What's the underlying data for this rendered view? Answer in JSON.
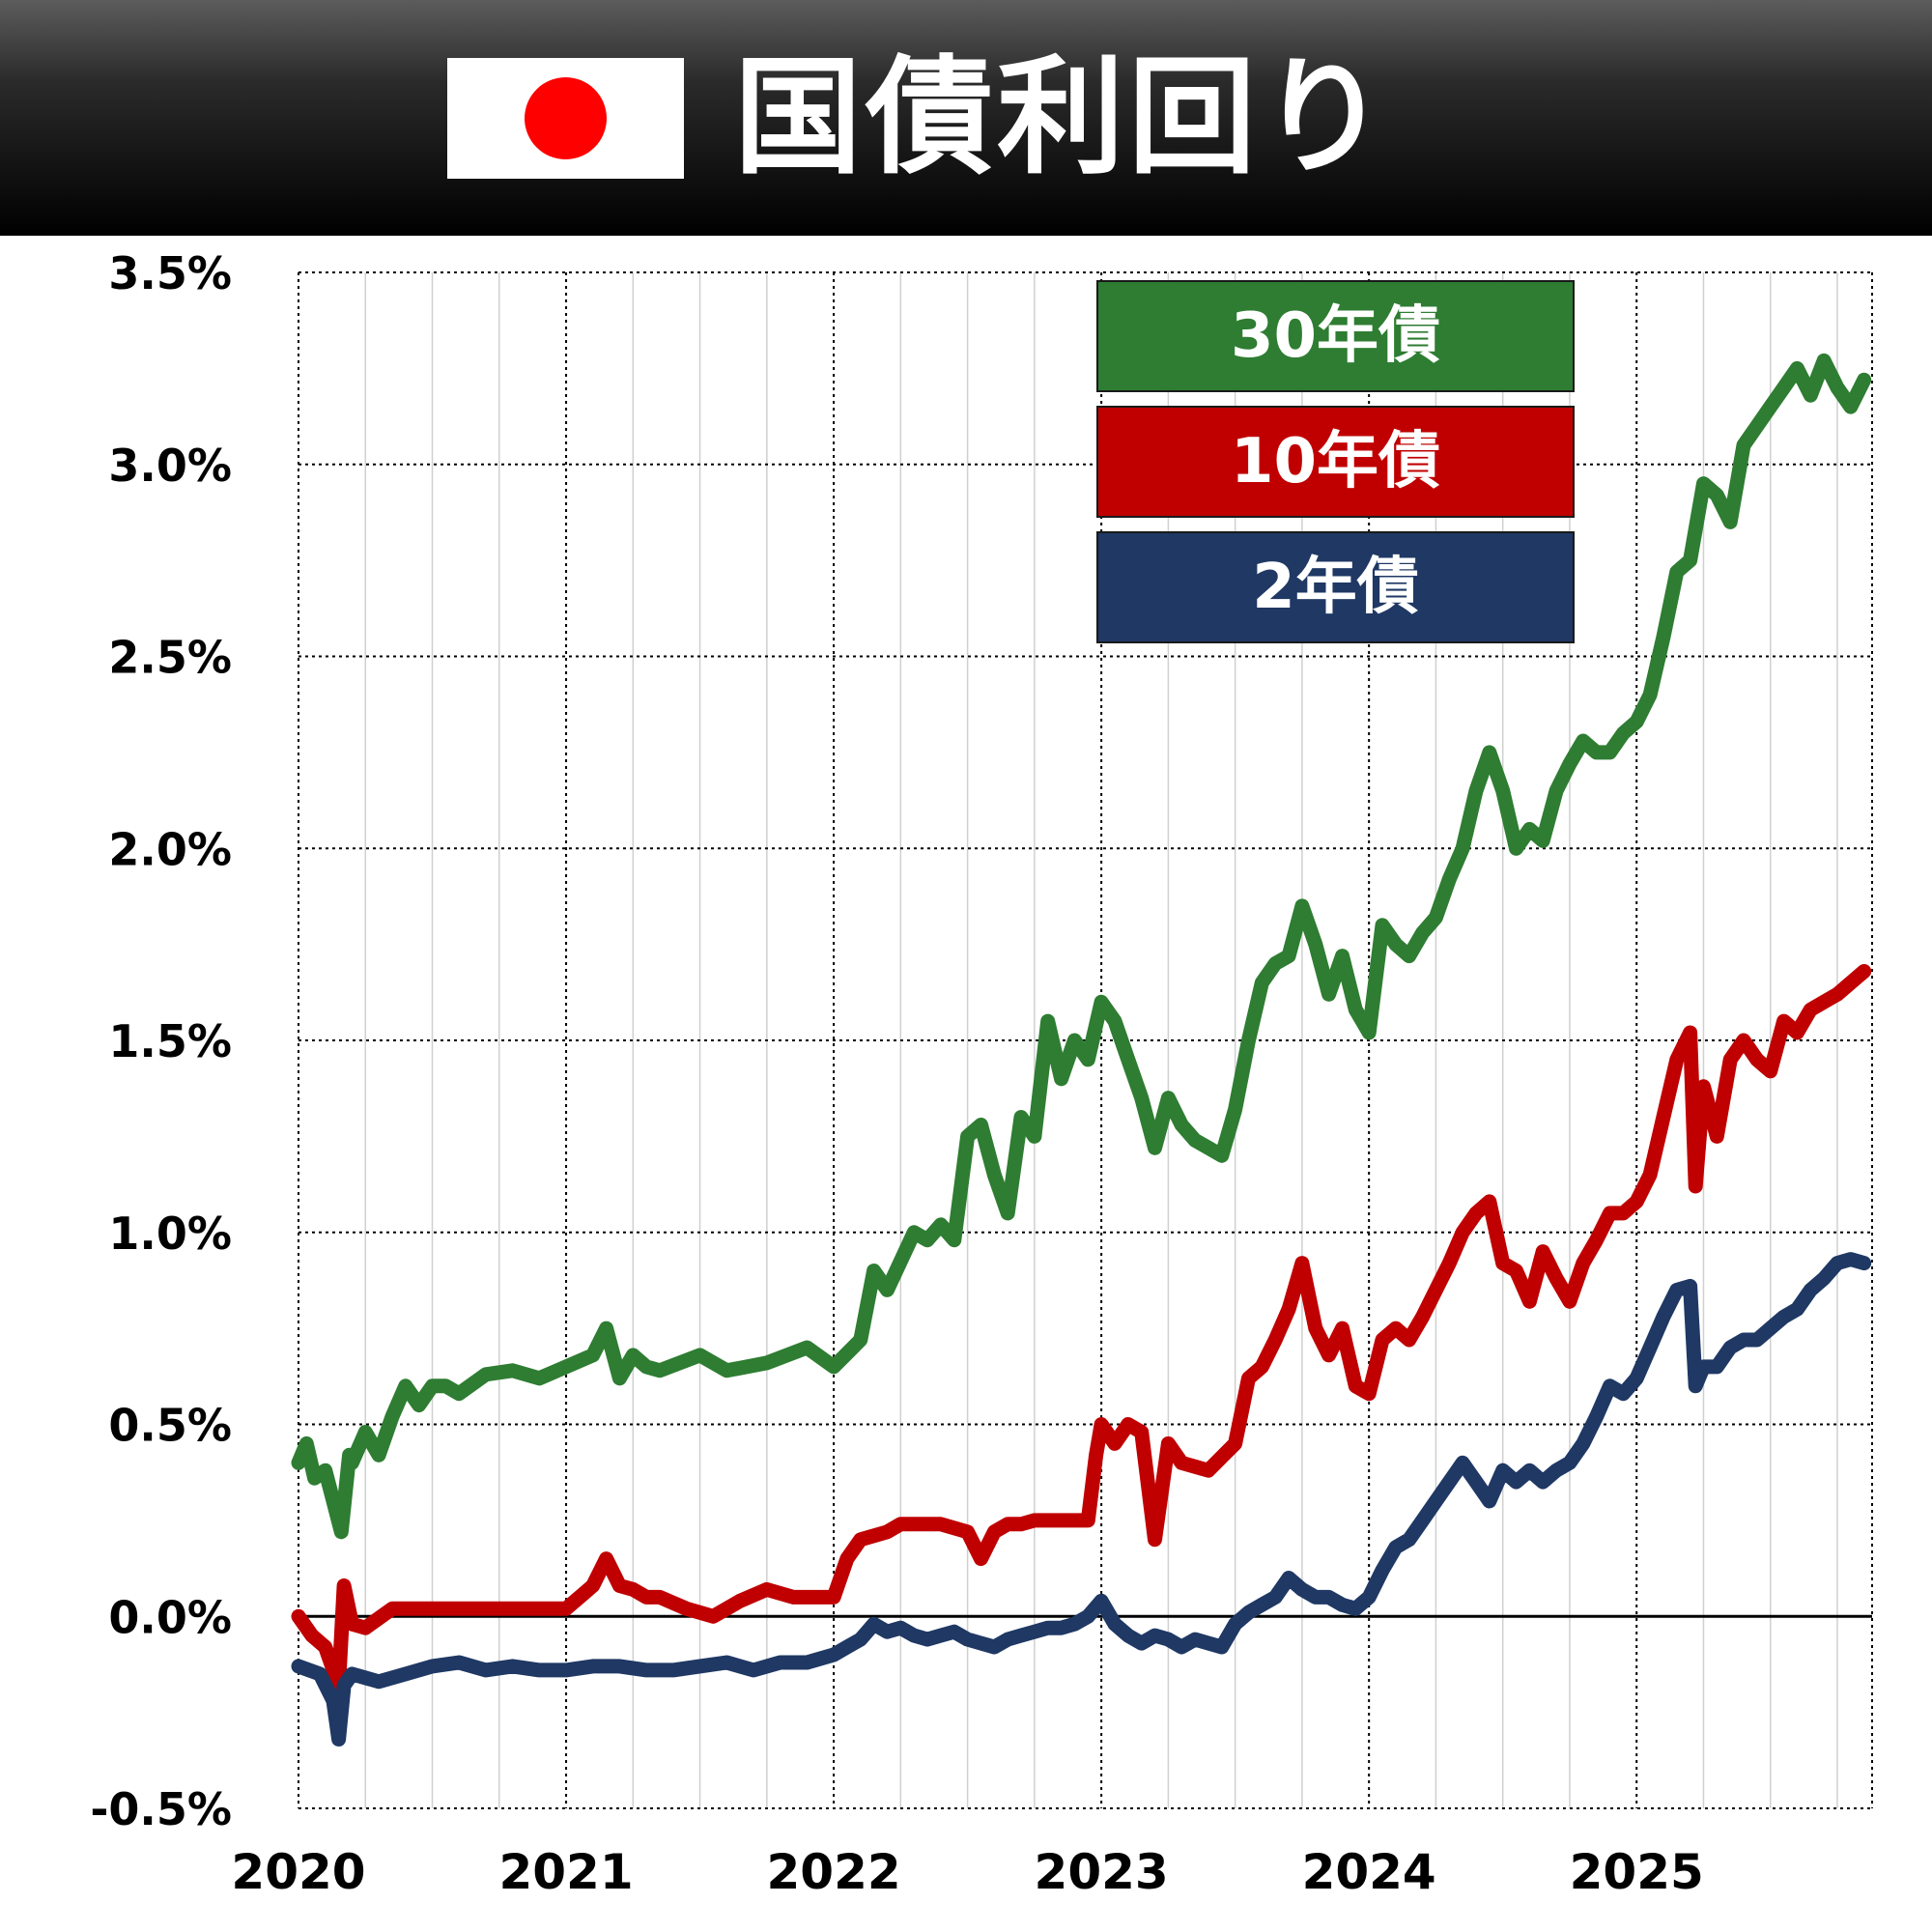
{
  "header": {
    "title": "国債利回り"
  },
  "colors": {
    "header_bg": "#000000",
    "flag_red": "#ff0000",
    "grid": "#d0d0d0",
    "major_grid": "#000000"
  },
  "chart_data": {
    "type": "line",
    "title": "国債利回り",
    "xlabel": "",
    "ylabel": "",
    "ylim": [
      -0.5,
      3.5
    ],
    "xlim": [
      2020.0,
      2025.88
    ],
    "y_ticks": [
      -0.5,
      0.0,
      0.5,
      1.0,
      1.5,
      2.0,
      2.5,
      3.0,
      3.5
    ],
    "y_tick_labels": [
      "-0.5%",
      "0.0%",
      "0.5%",
      "1.0%",
      "1.5%",
      "2.0%",
      "2.5%",
      "3.0%",
      "3.5%"
    ],
    "x_ticks": [
      2020,
      2021,
      2022,
      2023,
      2024,
      2025
    ],
    "x_tick_labels": [
      "2020",
      "2021",
      "2022",
      "2023",
      "2024",
      "2025"
    ],
    "grid": true,
    "legend_position": "top-right",
    "series": [
      {
        "name": "30年債",
        "color": "#2e7d32",
        "x": [
          2020.0,
          2020.03,
          2020.06,
          2020.1,
          2020.13,
          2020.16,
          2020.19,
          2020.2,
          2020.25,
          2020.3,
          2020.35,
          2020.4,
          2020.45,
          2020.5,
          2020.55,
          2020.6,
          2020.7,
          2020.8,
          2020.9,
          2021.0,
          2021.1,
          2021.15,
          2021.2,
          2021.25,
          2021.3,
          2021.35,
          2021.5,
          2021.6,
          2021.75,
          2021.9,
          2022.0,
          2022.1,
          2022.15,
          2022.2,
          2022.3,
          2022.35,
          2022.4,
          2022.45,
          2022.5,
          2022.55,
          2022.6,
          2022.65,
          2022.7,
          2022.75,
          2022.8,
          2022.85,
          2022.9,
          2022.95,
          2023.0,
          2023.05,
          2023.1,
          2023.15,
          2023.2,
          2023.25,
          2023.3,
          2023.35,
          2023.4,
          2023.45,
          2023.5,
          2023.55,
          2023.6,
          2023.65,
          2023.7,
          2023.75,
          2023.8,
          2023.85,
          2023.9,
          2023.95,
          2024.0,
          2024.05,
          2024.1,
          2024.15,
          2024.2,
          2024.25,
          2024.3,
          2024.35,
          2024.4,
          2024.45,
          2024.5,
          2024.55,
          2024.6,
          2024.65,
          2024.7,
          2024.75,
          2024.8,
          2024.85,
          2024.9,
          2024.95,
          2025.0,
          2025.05,
          2025.1,
          2025.15,
          2025.2,
          2025.25,
          2025.3,
          2025.35,
          2025.4,
          2025.45,
          2025.5,
          2025.55,
          2025.6,
          2025.65,
          2025.7,
          2025.75,
          2025.8,
          2025.85
        ],
        "values": [
          0.4,
          0.45,
          0.36,
          0.38,
          0.3,
          0.22,
          0.42,
          0.4,
          0.48,
          0.42,
          0.52,
          0.6,
          0.55,
          0.6,
          0.6,
          0.58,
          0.63,
          0.64,
          0.62,
          0.65,
          0.68,
          0.75,
          0.62,
          0.68,
          0.65,
          0.64,
          0.68,
          0.64,
          0.66,
          0.7,
          0.65,
          0.72,
          0.9,
          0.85,
          1.0,
          0.98,
          1.02,
          0.98,
          1.25,
          1.28,
          1.15,
          1.05,
          1.3,
          1.25,
          1.55,
          1.4,
          1.5,
          1.45,
          1.6,
          1.55,
          1.45,
          1.35,
          1.22,
          1.35,
          1.28,
          1.24,
          1.22,
          1.2,
          1.32,
          1.5,
          1.65,
          1.7,
          1.72,
          1.85,
          1.75,
          1.62,
          1.72,
          1.58,
          1.52,
          1.8,
          1.75,
          1.72,
          1.78,
          1.82,
          1.92,
          2.0,
          2.15,
          2.25,
          2.15,
          2.0,
          2.05,
          2.02,
          2.15,
          2.22,
          2.28,
          2.25,
          2.25,
          2.3,
          2.33,
          2.4,
          2.55,
          2.72,
          2.75,
          2.95,
          2.92,
          2.85,
          3.05,
          3.1,
          3.15,
          3.2,
          3.25,
          3.18,
          3.27,
          3.2,
          3.15,
          3.22
        ]
      },
      {
        "name": "10年債",
        "color": "#c00000",
        "x": [
          2020.0,
          2020.05,
          2020.1,
          2020.15,
          2020.17,
          2020.2,
          2020.25,
          2020.35,
          2020.45,
          2020.55,
          2020.65,
          2020.75,
          2020.85,
          2020.95,
          2021.0,
          2021.05,
          2021.1,
          2021.15,
          2021.2,
          2021.25,
          2021.3,
          2021.35,
          2021.45,
          2021.55,
          2021.65,
          2021.75,
          2021.85,
          2021.9,
          2022.0,
          2022.05,
          2022.1,
          2022.2,
          2022.25,
          2022.3,
          2022.4,
          2022.5,
          2022.55,
          2022.6,
          2022.65,
          2022.7,
          2022.75,
          2022.85,
          2022.95,
          2022.98,
          2023.0,
          2023.05,
          2023.1,
          2023.15,
          2023.2,
          2023.25,
          2023.3,
          2023.4,
          2023.5,
          2023.55,
          2023.6,
          2023.65,
          2023.7,
          2023.75,
          2023.8,
          2023.85,
          2023.9,
          2023.95,
          2024.0,
          2024.05,
          2024.1,
          2024.15,
          2024.2,
          2024.25,
          2024.3,
          2024.35,
          2024.4,
          2024.45,
          2024.5,
          2024.55,
          2024.6,
          2024.65,
          2024.7,
          2024.75,
          2024.8,
          2024.85,
          2024.9,
          2024.95,
          2025.0,
          2025.05,
          2025.1,
          2025.15,
          2025.2,
          2025.22,
          2025.25,
          2025.3,
          2025.35,
          2025.4,
          2025.45,
          2025.5,
          2025.55,
          2025.6,
          2025.65,
          2025.7,
          2025.75,
          2025.8,
          2025.85
        ],
        "values": [
          0.0,
          -0.05,
          -0.08,
          -0.18,
          0.08,
          -0.02,
          -0.03,
          0.02,
          0.02,
          0.02,
          0.02,
          0.02,
          0.02,
          0.02,
          0.02,
          0.05,
          0.08,
          0.15,
          0.08,
          0.07,
          0.05,
          0.05,
          0.02,
          0.0,
          0.04,
          0.07,
          0.05,
          0.05,
          0.05,
          0.15,
          0.2,
          0.22,
          0.24,
          0.24,
          0.24,
          0.22,
          0.15,
          0.22,
          0.24,
          0.24,
          0.25,
          0.25,
          0.25,
          0.42,
          0.5,
          0.45,
          0.5,
          0.48,
          0.2,
          0.45,
          0.4,
          0.38,
          0.45,
          0.62,
          0.65,
          0.72,
          0.8,
          0.92,
          0.75,
          0.68,
          0.75,
          0.6,
          0.58,
          0.72,
          0.75,
          0.72,
          0.78,
          0.85,
          0.92,
          1.0,
          1.05,
          1.08,
          0.92,
          0.9,
          0.82,
          0.95,
          0.88,
          0.82,
          0.92,
          0.98,
          1.05,
          1.05,
          1.08,
          1.15,
          1.3,
          1.45,
          1.52,
          1.12,
          1.38,
          1.25,
          1.45,
          1.5,
          1.45,
          1.42,
          1.55,
          1.52,
          1.58,
          1.6,
          1.62,
          1.65,
          1.68
        ]
      },
      {
        "name": "2年債",
        "color": "#1f3864",
        "x": [
          2020.0,
          2020.08,
          2020.13,
          2020.15,
          2020.17,
          2020.2,
          2020.3,
          2020.4,
          2020.5,
          2020.6,
          2020.7,
          2020.8,
          2020.9,
          2021.0,
          2021.1,
          2021.2,
          2021.3,
          2021.4,
          2021.5,
          2021.6,
          2021.7,
          2021.8,
          2021.9,
          2022.0,
          2022.05,
          2022.1,
          2022.15,
          2022.2,
          2022.25,
          2022.3,
          2022.35,
          2022.4,
          2022.45,
          2022.5,
          2022.55,
          2022.6,
          2022.65,
          2022.7,
          2022.75,
          2022.8,
          2022.85,
          2022.9,
          2022.95,
          2023.0,
          2023.05,
          2023.1,
          2023.15,
          2023.2,
          2023.25,
          2023.3,
          2023.35,
          2023.4,
          2023.45,
          2023.5,
          2023.55,
          2023.6,
          2023.65,
          2023.7,
          2023.75,
          2023.8,
          2023.85,
          2023.9,
          2023.95,
          2024.0,
          2024.05,
          2024.1,
          2024.15,
          2024.2,
          2024.25,
          2024.3,
          2024.35,
          2024.4,
          2024.45,
          2024.5,
          2024.55,
          2024.6,
          2024.65,
          2024.7,
          2024.75,
          2024.8,
          2024.85,
          2024.9,
          2024.95,
          2025.0,
          2025.05,
          2025.1,
          2025.15,
          2025.2,
          2025.22,
          2025.25,
          2025.3,
          2025.35,
          2025.4,
          2025.45,
          2025.5,
          2025.55,
          2025.6,
          2025.65,
          2025.7,
          2025.75,
          2025.8,
          2025.85
        ],
        "values": [
          -0.13,
          -0.15,
          -0.22,
          -0.32,
          -0.18,
          -0.15,
          -0.17,
          -0.15,
          -0.13,
          -0.12,
          -0.14,
          -0.13,
          -0.14,
          -0.14,
          -0.13,
          -0.13,
          -0.14,
          -0.14,
          -0.13,
          -0.12,
          -0.14,
          -0.12,
          -0.12,
          -0.1,
          -0.08,
          -0.06,
          -0.02,
          -0.04,
          -0.03,
          -0.05,
          -0.06,
          -0.05,
          -0.04,
          -0.06,
          -0.07,
          -0.08,
          -0.06,
          -0.05,
          -0.04,
          -0.03,
          -0.03,
          -0.02,
          0.0,
          0.04,
          -0.02,
          -0.05,
          -0.07,
          -0.05,
          -0.06,
          -0.08,
          -0.06,
          -0.07,
          -0.08,
          -0.02,
          0.01,
          0.03,
          0.05,
          0.1,
          0.07,
          0.05,
          0.05,
          0.03,
          0.02,
          0.05,
          0.12,
          0.18,
          0.2,
          0.25,
          0.3,
          0.35,
          0.4,
          0.35,
          0.3,
          0.38,
          0.35,
          0.38,
          0.35,
          0.38,
          0.4,
          0.45,
          0.52,
          0.6,
          0.58,
          0.62,
          0.7,
          0.78,
          0.85,
          0.86,
          0.6,
          0.65,
          0.65,
          0.7,
          0.72,
          0.72,
          0.75,
          0.78,
          0.8,
          0.85,
          0.88,
          0.92,
          0.93,
          0.92
        ]
      }
    ]
  }
}
